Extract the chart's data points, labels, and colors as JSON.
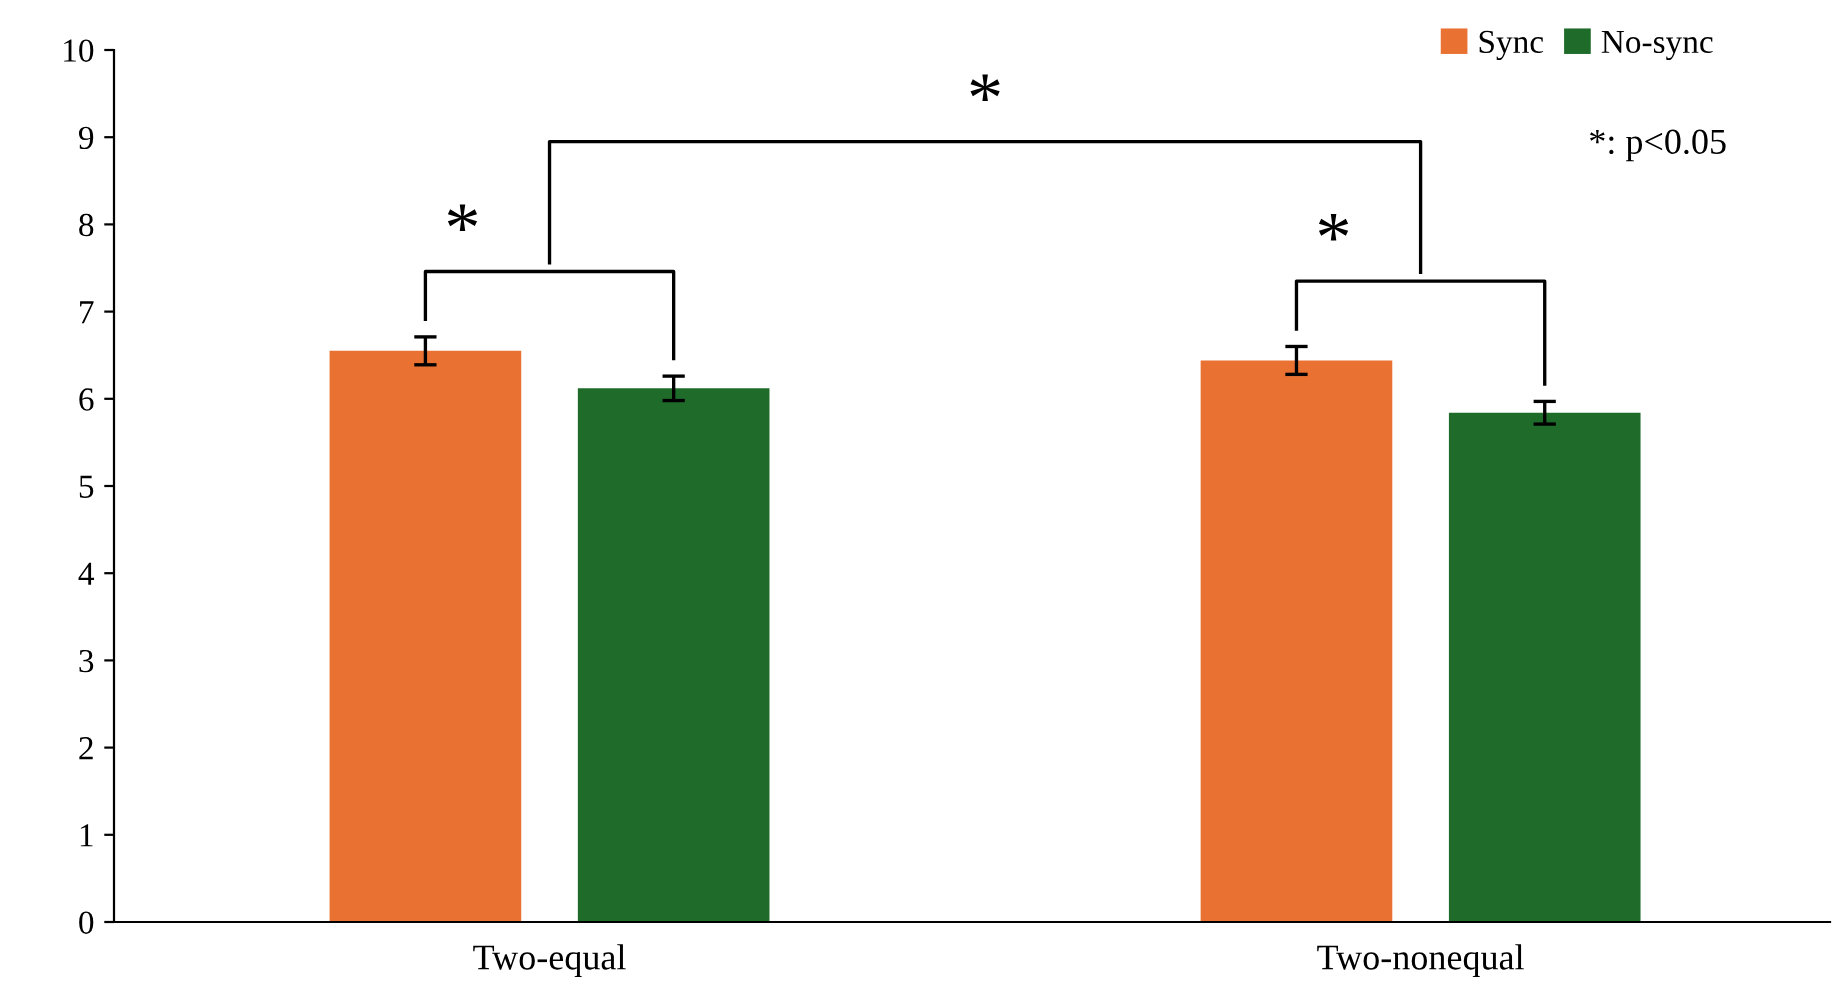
{
  "chart_data": {
    "type": "bar",
    "categories": [
      "Two-equal",
      "Two-nonequal"
    ],
    "series": [
      {
        "name": "Sync",
        "color": "#e97132",
        "values": [
          6.55,
          6.44
        ],
        "errors": [
          0.16,
          0.16
        ]
      },
      {
        "name": "No-sync",
        "color": "#1e6b2a",
        "values": [
          6.12,
          5.84
        ],
        "errors": [
          0.14,
          0.13
        ]
      }
    ],
    "ylim": [
      0,
      10
    ],
    "yticks": [
      0,
      1,
      2,
      3,
      4,
      5,
      6,
      7,
      8,
      9,
      10
    ],
    "grid": false,
    "legend": "top right",
    "annotations": [
      "*",
      "*",
      "*",
      "*: p<0.05"
    ]
  }
}
